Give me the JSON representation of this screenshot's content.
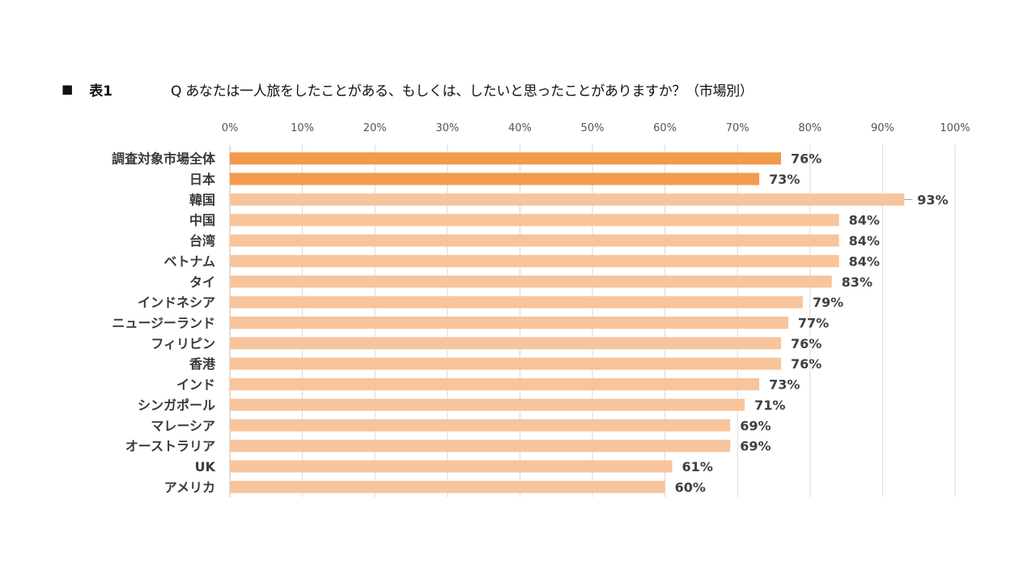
{
  "header": {
    "marker": "■",
    "table_label": "表1",
    "question": "Q  あなたは一人旅をしたことがある、もしくは、したいと思ったことがありますか？（市場別）"
  },
  "colors": {
    "highlight_bar": "#f39a4c",
    "bar": "#f8c49b",
    "grid": "#d9d9d9",
    "axis": "#bfbfbf"
  },
  "chart_data": {
    "type": "bar",
    "orientation": "horizontal",
    "title": "表1　Q あなたは一人旅をしたことがある、もしくは、したいと思ったことがありますか？（市場別）",
    "categories": [
      "調査対象市場全体",
      "日本",
      "韓国",
      "中国",
      "台湾",
      "ベトナム",
      "タイ",
      "インドネシア",
      "ニュージーランド",
      "フィリピン",
      "香港",
      "インド",
      "シンガポール",
      "マレーシア",
      "オーストラリア",
      "UK",
      "アメリカ"
    ],
    "values": [
      76,
      73,
      93,
      84,
      84,
      84,
      83,
      79,
      77,
      76,
      76,
      73,
      71,
      69,
      69,
      61,
      60
    ],
    "value_labels": [
      "76%",
      "73%",
      "93%",
      "84%",
      "84%",
      "84%",
      "83%",
      "79%",
      "77%",
      "76%",
      "76%",
      "73%",
      "71%",
      "69%",
      "69%",
      "61%",
      "60%"
    ],
    "highlighted": [
      true,
      true,
      false,
      false,
      false,
      false,
      false,
      false,
      false,
      false,
      false,
      false,
      false,
      false,
      false,
      false,
      false
    ],
    "xlim": [
      0,
      100
    ],
    "xticks": [
      "0%",
      "10%",
      "20%",
      "30%",
      "40%",
      "50%",
      "60%",
      "70%",
      "80%",
      "90%",
      "100%"
    ],
    "axis_position": "top",
    "grid": true,
    "legend": "none"
  }
}
